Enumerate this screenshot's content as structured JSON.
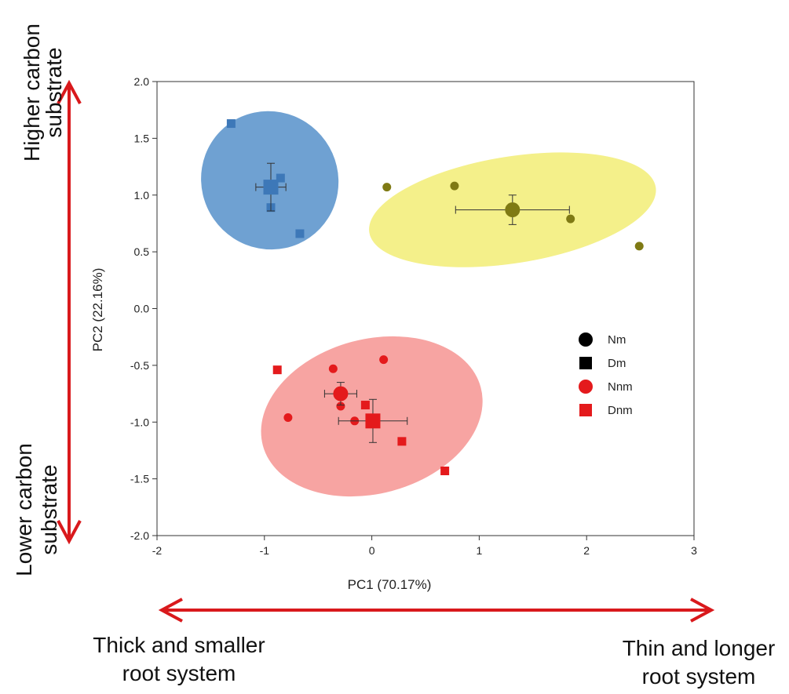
{
  "chart_data": {
    "type": "scatter",
    "xlabel": "PC1 (70.17%)",
    "ylabel": "PC2 (22.16%)",
    "xlim": [
      -2,
      3
    ],
    "ylim": [
      -2,
      2
    ],
    "xticks": [
      "-2",
      "-1",
      "0",
      "1",
      "2",
      "3"
    ],
    "yticks": [
      "-2.0",
      "-1.5",
      "-1.0",
      "-0.5",
      "0.0",
      "0.5",
      "1.0",
      "1.5",
      "2.0"
    ],
    "grid": false,
    "legend_position": "right",
    "legend": [
      {
        "label": "Nm",
        "marker": "circle",
        "color": "#000000"
      },
      {
        "label": "Dm",
        "marker": "square",
        "color": "#000000"
      },
      {
        "label": "Nnm",
        "marker": "circle",
        "color": "#e41a1c"
      },
      {
        "label": "Dnm",
        "marker": "square",
        "color": "#e41a1c"
      }
    ],
    "series": [
      {
        "name": "Nm",
        "marker": "circle",
        "color": "#7f7a14",
        "points": [
          [
            0.14,
            1.07
          ],
          [
            0.77,
            1.08
          ],
          [
            1.85,
            0.79
          ],
          [
            2.49,
            0.55
          ]
        ],
        "mean": {
          "x": 1.31,
          "y": 0.87,
          "xerr": 0.53,
          "yerr": 0.13
        }
      },
      {
        "name": "Dm",
        "marker": "square",
        "color": "#3d78b8",
        "points": [
          [
            -1.31,
            1.63
          ],
          [
            -0.85,
            1.15
          ],
          [
            -0.94,
            0.89
          ],
          [
            -0.67,
            0.66
          ]
        ],
        "mean": {
          "x": -0.94,
          "y": 1.07,
          "xerr": 0.14,
          "yerr": 0.21
        }
      },
      {
        "name": "Nnm",
        "marker": "circle",
        "color": "#e41a1c",
        "points": [
          [
            -0.36,
            -0.53
          ],
          [
            0.11,
            -0.45
          ],
          [
            -0.78,
            -0.96
          ],
          [
            -0.29,
            -0.86
          ],
          [
            -0.16,
            -0.99
          ]
        ],
        "mean": {
          "x": -0.29,
          "y": -0.75,
          "xerr": 0.15,
          "yerr": 0.1
        }
      },
      {
        "name": "Dnm",
        "marker": "square",
        "color": "#e41a1c",
        "points": [
          [
            -0.88,
            -0.54
          ],
          [
            -0.06,
            -0.85
          ],
          [
            0.28,
            -1.17
          ],
          [
            0.68,
            -1.43
          ]
        ],
        "mean": {
          "x": 0.01,
          "y": -0.99,
          "xerr": 0.32,
          "yerr": 0.19
        }
      }
    ],
    "ellipses": [
      {
        "group": "Dm",
        "fill": "#6fa1d2",
        "cx": -0.95,
        "cy": 1.13,
        "rx": 0.65,
        "ry": 0.6,
        "angle_deg": 55
      },
      {
        "group": "Nm",
        "fill": "#f4f08a",
        "cx": 1.31,
        "cy": 0.87,
        "rx": 1.35,
        "ry": 0.47,
        "angle_deg": -9
      },
      {
        "group": "Nnm/Dnm",
        "fill": "#f7a4a2",
        "cx": 0.0,
        "cy": -0.95,
        "rx": 1.05,
        "ry": 0.68,
        "angle_deg": -15
      }
    ]
  },
  "annotations": {
    "higher_carbon": [
      "Higher carbon",
      "substrate"
    ],
    "lower_carbon": [
      "Lower carbon",
      "substrate"
    ],
    "thick_root": [
      "Thick and smaller",
      "root system"
    ],
    "thin_root": [
      "Thin and longer",
      "root system"
    ],
    "arrow_color": "#d9191c"
  }
}
